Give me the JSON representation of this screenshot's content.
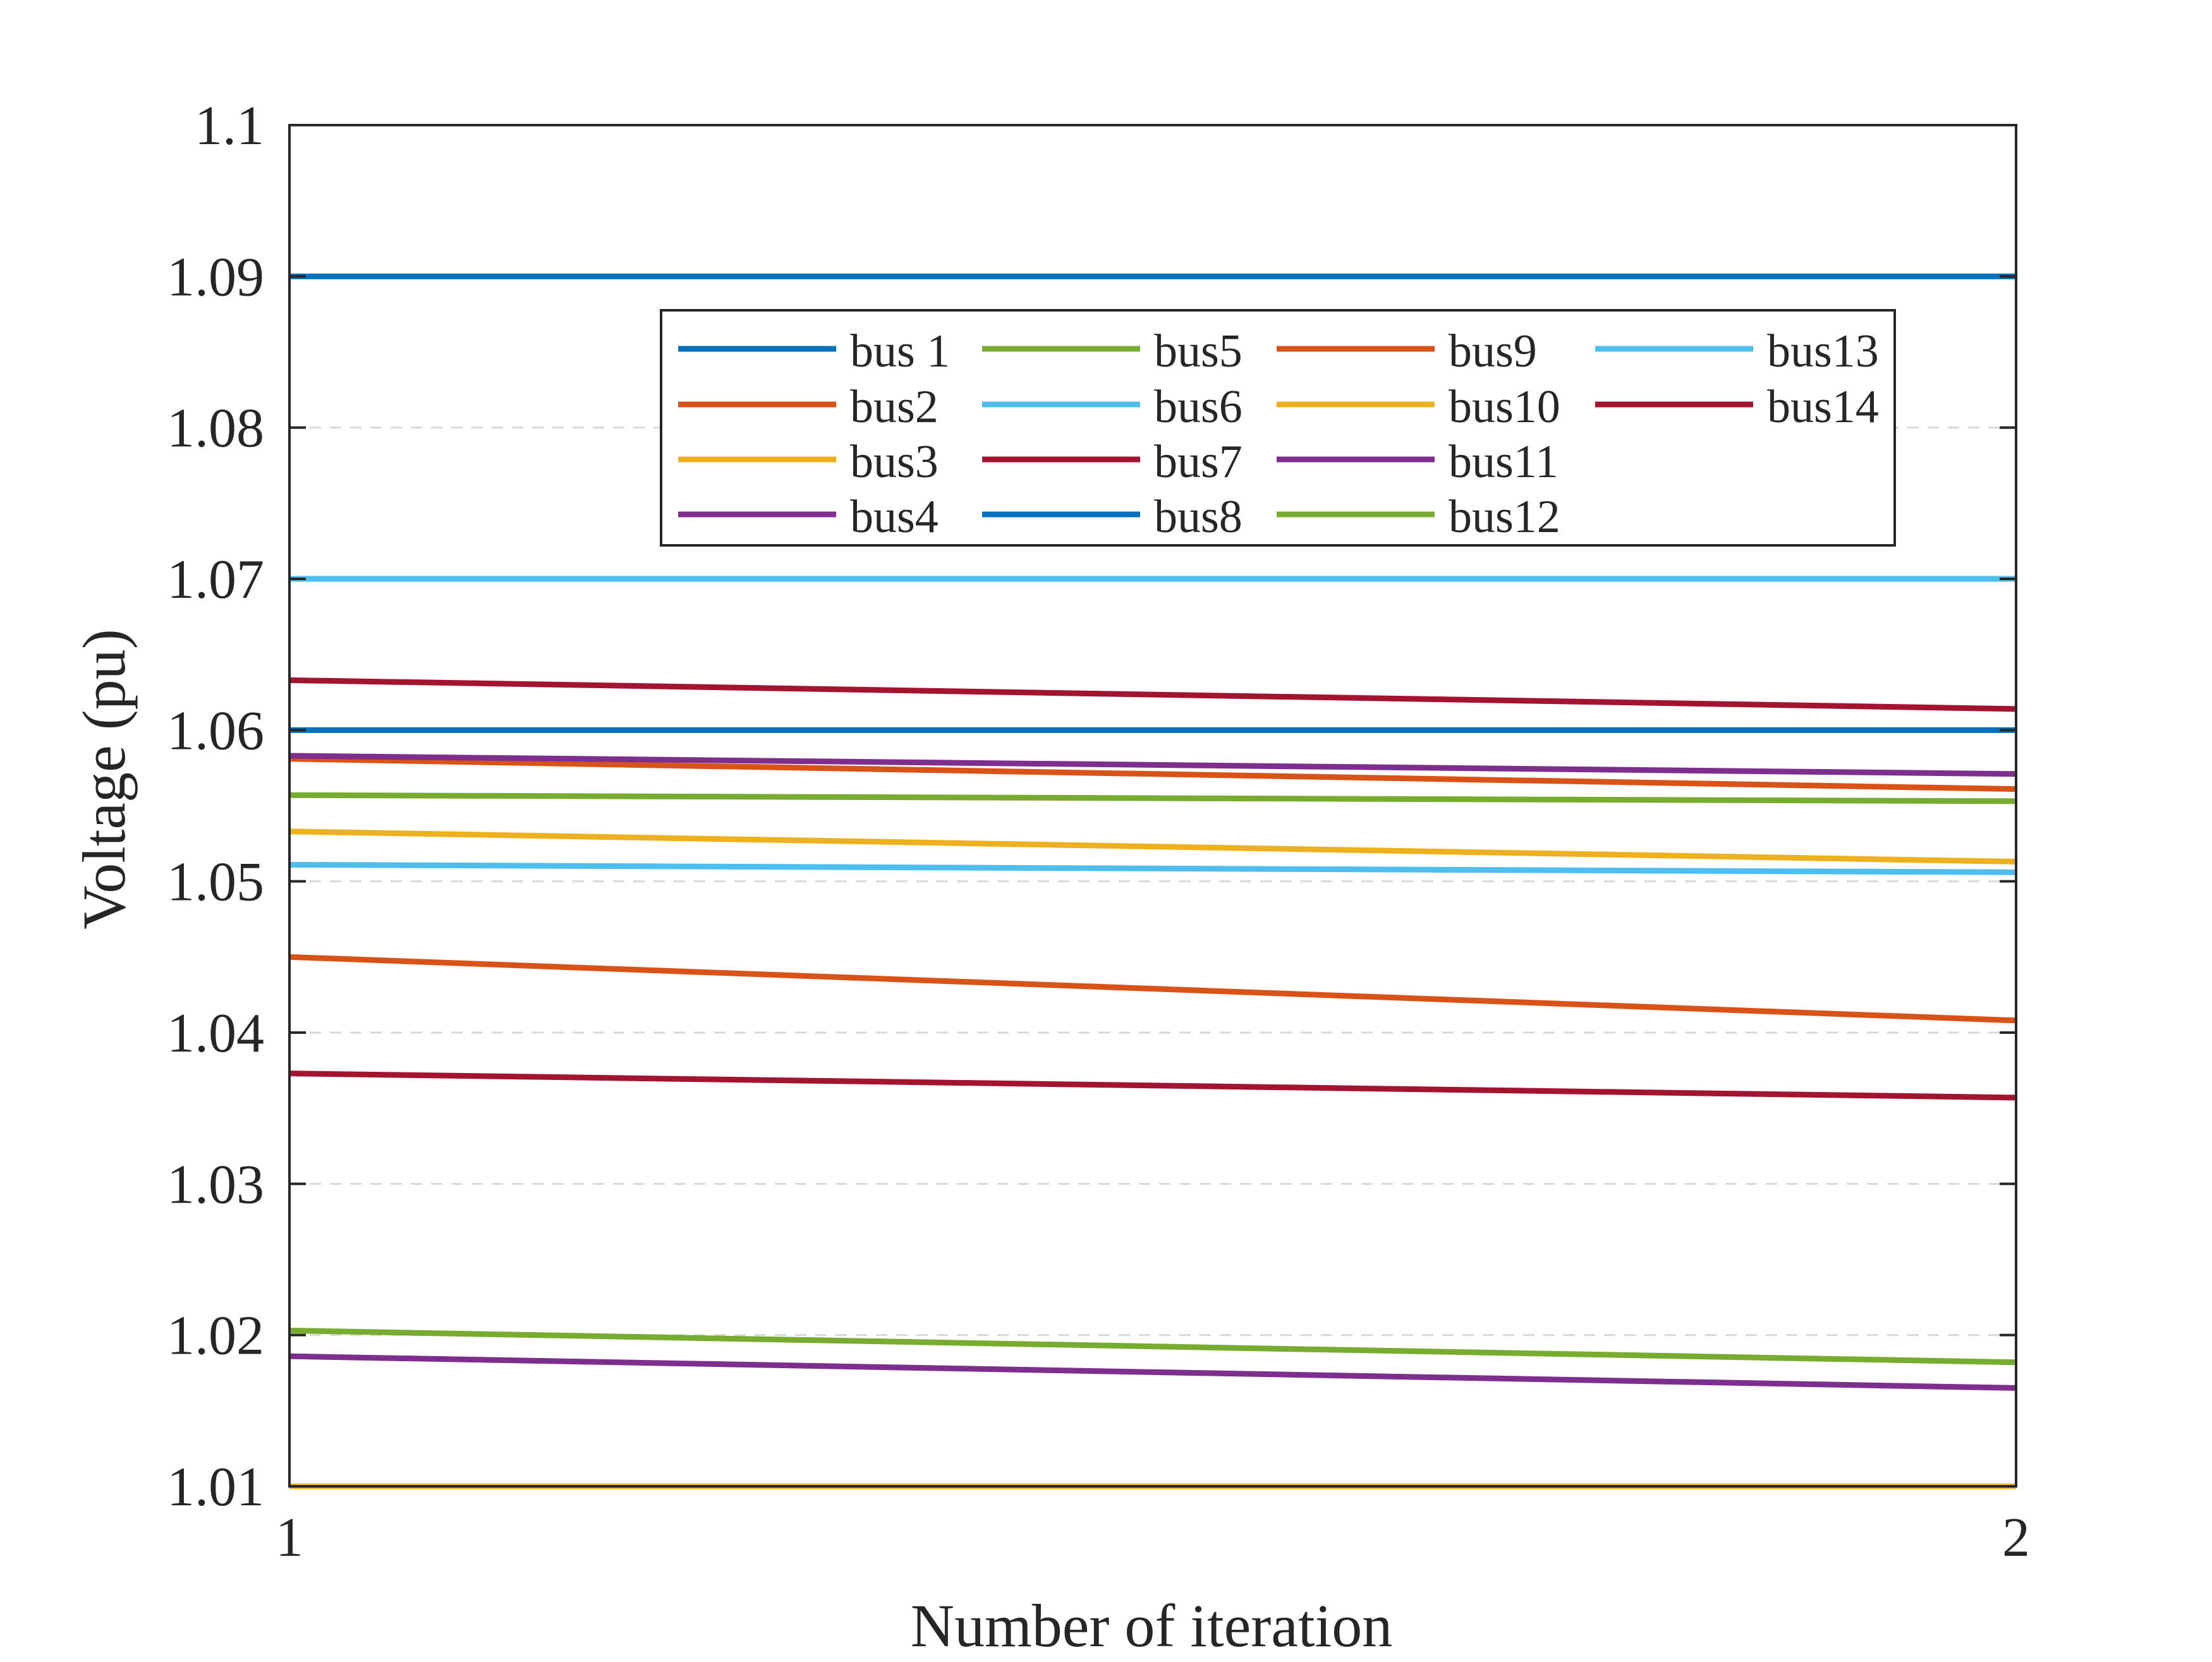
{
  "chart_data": {
    "type": "line",
    "title": "",
    "xlabel": "Number of iteration",
    "ylabel": "Voltage (pu)",
    "x": [
      1,
      2
    ],
    "xlim": [
      1,
      2
    ],
    "ylim": [
      1.01,
      1.1
    ],
    "xticks": [
      "1",
      "2"
    ],
    "yticks": [
      "1.01",
      "1.02",
      "1.03",
      "1.04",
      "1.05",
      "1.06",
      "1.07",
      "1.08",
      "1.09",
      "1.1"
    ],
    "grid": "horizontal dashed",
    "legend_position": "top-right",
    "legend_columns": 4,
    "series": [
      {
        "name": "bus 1",
        "color": "#0072BD",
        "values": [
          1.09,
          1.09
        ]
      },
      {
        "name": "bus2",
        "color": "#D95319",
        "values": [
          1.045,
          1.0408
        ]
      },
      {
        "name": "bus3",
        "color": "#EDB120",
        "values": [
          1.01,
          1.01
        ]
      },
      {
        "name": "bus4",
        "color": "#7E2F8E",
        "values": [
          1.0186,
          1.0165
        ]
      },
      {
        "name": "bus5",
        "color": "#77AC30",
        "values": [
          1.0203,
          1.0182
        ]
      },
      {
        "name": "bus6",
        "color": "#4DBEEE",
        "values": [
          1.07,
          1.07
        ]
      },
      {
        "name": "bus7",
        "color": "#A2142F",
        "values": [
          1.0373,
          1.0357
        ]
      },
      {
        "name": "bus8",
        "color": "#0072BD",
        "values": [
          1.06,
          1.06
        ]
      },
      {
        "name": "bus9",
        "color": "#D95319",
        "values": [
          1.0581,
          1.0561
        ]
      },
      {
        "name": "bus10",
        "color": "#EDB120",
        "values": [
          1.0533,
          1.0513
        ]
      },
      {
        "name": "bus11",
        "color": "#7E2F8E",
        "values": [
          1.0583,
          1.0571
        ]
      },
      {
        "name": "bus12",
        "color": "#77AC30",
        "values": [
          1.0557,
          1.0553
        ]
      },
      {
        "name": "bus13",
        "color": "#4DBEEE",
        "values": [
          1.0511,
          1.0506
        ]
      },
      {
        "name": "bus14",
        "color": "#A2142F",
        "values": [
          1.0633,
          1.0614
        ]
      }
    ]
  }
}
